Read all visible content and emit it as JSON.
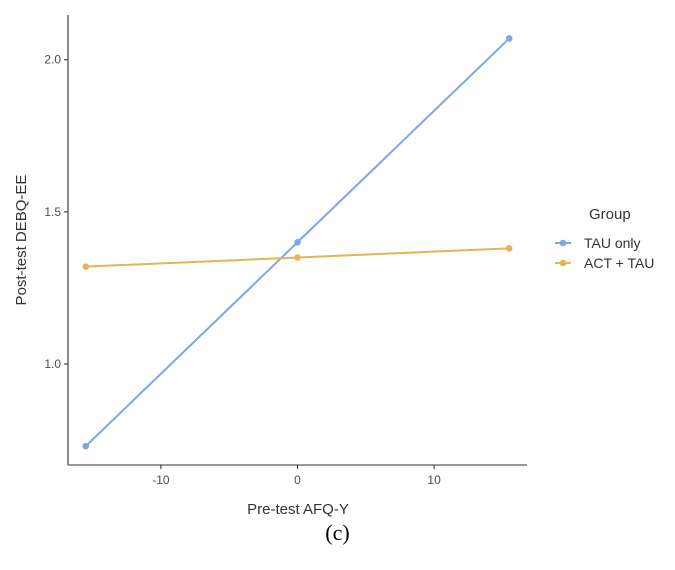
{
  "caption": "(c)",
  "chart_data": {
    "type": "line",
    "xlabel": "Pre-test AFQ-Y",
    "ylabel": "Post-test DEBQ-EE",
    "xlim": [
      -16.8,
      16.8
    ],
    "ylim": [
      0.668,
      2.147
    ],
    "x_ticks": [
      -10,
      0,
      10
    ],
    "x_tick_labels": [
      "-10",
      "0",
      "10"
    ],
    "y_ticks": [
      1.0,
      1.5,
      2.0
    ],
    "y_tick_labels": [
      "1.0",
      "1.5",
      "2.0"
    ],
    "grid": false,
    "legend": {
      "title": "Group",
      "position": "right"
    },
    "series": [
      {
        "name": "TAU only",
        "color": "#7ea6e8",
        "x": [
          -15.5,
          0,
          15.5
        ],
        "y": [
          0.73,
          1.4,
          2.07
        ]
      },
      {
        "name": "ACT + TAU",
        "color": "#e6b457",
        "x": [
          -15.5,
          0,
          15.5
        ],
        "y": [
          1.32,
          1.35,
          1.38
        ]
      }
    ]
  }
}
